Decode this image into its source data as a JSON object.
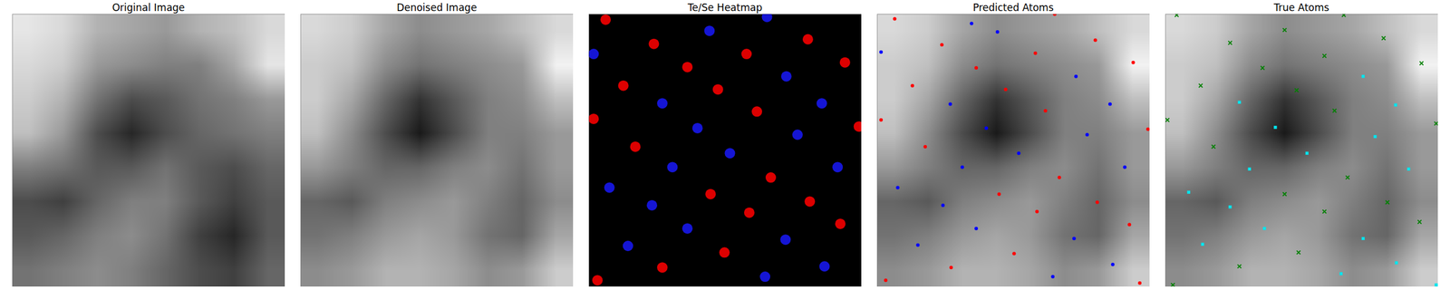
{
  "chart_data": [
    {
      "type": "image",
      "title": "Original Image",
      "xlim": [
        0,
        100
      ],
      "ylim": [
        0,
        100
      ],
      "tick_labels": false,
      "clim": [
        0,
        1
      ],
      "cells": [
        [
          0.9,
          0.85,
          0.7,
          0.65,
          0.6,
          0.7,
          0.75,
          0.85
        ],
        [
          0.85,
          0.8,
          0.6,
          0.55,
          0.5,
          0.5,
          0.65,
          0.9
        ],
        [
          0.8,
          0.7,
          0.45,
          0.3,
          0.35,
          0.45,
          0.5,
          0.6
        ],
        [
          0.75,
          0.6,
          0.3,
          0.15,
          0.3,
          0.4,
          0.45,
          0.5
        ],
        [
          0.5,
          0.45,
          0.35,
          0.35,
          0.45,
          0.35,
          0.3,
          0.4
        ],
        [
          0.3,
          0.25,
          0.4,
          0.5,
          0.5,
          0.35,
          0.25,
          0.35
        ],
        [
          0.35,
          0.4,
          0.5,
          0.55,
          0.45,
          0.25,
          0.15,
          0.35
        ],
        [
          0.45,
          0.5,
          0.55,
          0.5,
          0.4,
          0.3,
          0.25,
          0.4
        ]
      ]
    },
    {
      "type": "image",
      "title": "Denoised Image",
      "xlim": [
        0,
        100
      ],
      "ylim": [
        0,
        100
      ],
      "tick_labels": false,
      "clim": [
        0,
        1
      ],
      "cells": [
        [
          0.85,
          0.8,
          0.65,
          0.55,
          0.6,
          0.65,
          0.75,
          0.85
        ],
        [
          0.8,
          0.75,
          0.55,
          0.45,
          0.5,
          0.55,
          0.6,
          0.95
        ],
        [
          0.8,
          0.65,
          0.4,
          0.2,
          0.35,
          0.5,
          0.55,
          0.75
        ],
        [
          0.75,
          0.55,
          0.3,
          0.1,
          0.3,
          0.5,
          0.5,
          0.6
        ],
        [
          0.6,
          0.5,
          0.4,
          0.4,
          0.5,
          0.55,
          0.45,
          0.6
        ],
        [
          0.4,
          0.35,
          0.5,
          0.55,
          0.6,
          0.5,
          0.4,
          0.55
        ],
        [
          0.45,
          0.5,
          0.6,
          0.65,
          0.6,
          0.45,
          0.4,
          0.65
        ],
        [
          0.55,
          0.6,
          0.7,
          0.7,
          0.65,
          0.55,
          0.6,
          0.8
        ]
      ]
    },
    {
      "type": "heatmap",
      "title": "Te/Se Heatmap",
      "xlim": [
        0,
        100
      ],
      "ylim": [
        0,
        100
      ],
      "tick_labels": false,
      "series": [
        {
          "color": "#dd0000",
          "marker": "circle",
          "x": [
            6.1,
            23.8,
            36.1,
            57.8,
            80.3,
            93.9,
            12.6,
            47.3,
            1.7,
            61.6,
            17.0,
            66.7,
            44.6,
            58.8,
            81.0,
            92.2,
            49.7,
            26.9,
            3.1,
            99.0
          ],
          "y": [
            2.0,
            10.9,
            19.4,
            14.6,
            9.2,
            17.7,
            26.2,
            27.6,
            38.4,
            35.7,
            48.6,
            59.9,
            66.0,
            72.8,
            68.7,
            76.9,
            87.4,
            92.9,
            97.6,
            41.2
          ]
        },
        {
          "color": "#1515d5",
          "marker": "circle",
          "x": [
            44.2,
            1.7,
            72.4,
            26.9,
            85.4,
            39.8,
            76.5,
            51.7,
            30.6,
            91.2,
            7.5,
            23.1,
            36.1,
            72.1,
            14.3,
            86.4,
            64.6,
            65.3
          ],
          "y": [
            6.1,
            14.6,
            22.8,
            32.7,
            32.7,
            41.8,
            44.2,
            51.0,
            56.1,
            56.1,
            63.6,
            70.1,
            78.6,
            82.7,
            85.0,
            92.5,
            96.3,
            1.0
          ]
        }
      ]
    },
    {
      "type": "scatter",
      "title": "Predicted Atoms",
      "xlim": [
        0,
        100
      ],
      "ylim": [
        0,
        100
      ],
      "tick_labels": false,
      "clim": [
        0,
        1
      ],
      "cells": [
        [
          0.85,
          0.8,
          0.65,
          0.55,
          0.6,
          0.65,
          0.75,
          0.85
        ],
        [
          0.8,
          0.75,
          0.55,
          0.45,
          0.5,
          0.55,
          0.6,
          0.95
        ],
        [
          0.8,
          0.65,
          0.4,
          0.2,
          0.35,
          0.5,
          0.55,
          0.75
        ],
        [
          0.75,
          0.55,
          0.3,
          0.1,
          0.3,
          0.5,
          0.5,
          0.6
        ],
        [
          0.6,
          0.5,
          0.4,
          0.4,
          0.5,
          0.55,
          0.45,
          0.6
        ],
        [
          0.4,
          0.35,
          0.5,
          0.55,
          0.6,
          0.5,
          0.4,
          0.55
        ],
        [
          0.45,
          0.5,
          0.6,
          0.65,
          0.6,
          0.45,
          0.4,
          0.65
        ],
        [
          0.55,
          0.6,
          0.7,
          0.7,
          0.65,
          0.55,
          0.6,
          0.8
        ]
      ],
      "series": [
        {
          "color": "#ff0000",
          "marker": "circle",
          "x": [
            6.4,
            23.7,
            36.3,
            58.0,
            80.0,
            93.9,
            12.9,
            47.1,
            1.4,
            61.7,
            17.6,
            66.8,
            44.7,
            58.6,
            80.7,
            92.5,
            50.2,
            27.1,
            3.1,
            99.3,
            65.1,
            96.3
          ],
          "y": [
            1.7,
            11.2,
            19.7,
            14.3,
            9.5,
            17.7,
            26.2,
            27.6,
            38.8,
            35.4,
            48.6,
            59.9,
            66.0,
            72.4,
            69.0,
            77.2,
            87.8,
            92.9,
            97.6,
            42.2,
            0.0,
            98.6
          ]
        },
        {
          "color": "#0000ff",
          "marker": "circle",
          "x": [
            34.6,
            44.1,
            1.4,
            72.9,
            26.8,
            85.4,
            40.0,
            77.0,
            51.9,
            31.2,
            90.8,
            7.5,
            24.1,
            36.3,
            72.2,
            14.9,
            86.4,
            64.4
          ],
          "y": [
            3.4,
            6.5,
            13.9,
            22.8,
            33.0,
            33.0,
            41.8,
            44.2,
            51.0,
            56.1,
            56.1,
            63.6,
            70.1,
            78.6,
            82.3,
            84.7,
            91.8,
            96.3
          ]
        }
      ]
    },
    {
      "type": "scatter",
      "title": "True Atoms",
      "xlim": [
        0,
        100
      ],
      "ylim": [
        0,
        100
      ],
      "tick_labels": false,
      "clim": [
        0,
        1
      ],
      "cells": [
        [
          0.85,
          0.8,
          0.65,
          0.55,
          0.6,
          0.65,
          0.75,
          0.85
        ],
        [
          0.8,
          0.75,
          0.55,
          0.45,
          0.5,
          0.55,
          0.6,
          0.95
        ],
        [
          0.8,
          0.65,
          0.4,
          0.2,
          0.35,
          0.5,
          0.55,
          0.75
        ],
        [
          0.75,
          0.55,
          0.3,
          0.1,
          0.3,
          0.5,
          0.5,
          0.6
        ],
        [
          0.6,
          0.5,
          0.4,
          0.4,
          0.5,
          0.55,
          0.45,
          0.6
        ],
        [
          0.4,
          0.35,
          0.5,
          0.55,
          0.6,
          0.5,
          0.4,
          0.55
        ],
        [
          0.45,
          0.5,
          0.6,
          0.65,
          0.6,
          0.45,
          0.4,
          0.65
        ],
        [
          0.55,
          0.6,
          0.7,
          0.7,
          0.65,
          0.55,
          0.6,
          0.8
        ]
      ],
      "series": [
        {
          "color": "#008000",
          "marker": "times",
          "x": [
            4.1,
            23.7,
            43.7,
            65.4,
            80.0,
            35.6,
            58.3,
            93.9,
            12.9,
            48.1,
            0.7,
            62.0,
            99.3,
            17.6,
            66.8,
            43.7,
            81.4,
            58.3,
            93.2,
            48.8,
            27.1,
            2.7
          ],
          "y": [
            0.3,
            10.5,
            5.8,
            0.3,
            8.8,
            19.7,
            15.3,
            18.0,
            26.2,
            27.9,
            38.8,
            35.4,
            40.1,
            48.6,
            59.9,
            66.0,
            69.0,
            72.4,
            76.2,
            87.4,
            92.5,
            99.3
          ]
        },
        {
          "color": "#00e5ee",
          "marker": "square",
          "x": [
            27.1,
            40.3,
            76.9,
            51.9,
            30.8,
            89.2,
            8.5,
            23.7,
            36.3,
            72.5,
            13.6,
            84.7,
            64.4,
            99.3,
            72.5,
            84.4
          ],
          "y": [
            32.3,
            41.5,
            44.9,
            51.0,
            56.8,
            56.8,
            65.3,
            70.7,
            78.6,
            82.3,
            84.4,
            91.2,
            95.2,
            99.3,
            22.8,
            33.3
          ]
        }
      ]
    }
  ]
}
